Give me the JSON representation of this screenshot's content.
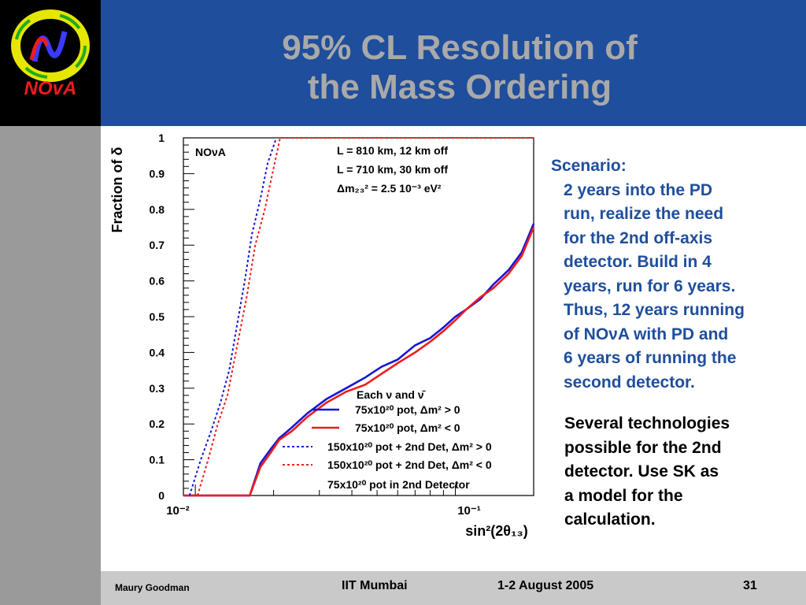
{
  "slide": {
    "title_line1": "95% CL Resolution of",
    "title_line2": "the Mass Ordering",
    "logo_text": "NOvA"
  },
  "side_text": {
    "scenario_label": "Scenario:",
    "lines": [
      "2 years into the PD",
      "run, realize the need",
      "for the 2nd off-axis",
      "detector.  Build in 4",
      "years, run for 6 years.",
      "Thus, 12 years running",
      "of NOνA with PD and",
      "6 years of running the",
      "second detector."
    ],
    "paragraph2": [
      "Several technologies",
      "possible for the 2nd",
      "detector.  Use SK as",
      "a model for the",
      "calculation."
    ]
  },
  "footer": {
    "author": "Maury Goodman",
    "venue": "IIT Mumbai",
    "date": "1-2 August 2005",
    "page": "31"
  },
  "colors": {
    "header_bg": "#1f4e9c",
    "title": "#a9a9a9",
    "blue": "#1515d6",
    "red": "#ee1c1c",
    "side_text": "#1f4e9c"
  },
  "chart_data": {
    "type": "line",
    "xscale": "log",
    "xlim": [
      0.009,
      0.2
    ],
    "ylim": [
      0,
      1
    ],
    "ylabel": "Fraction of δ",
    "xlabel": "sin²(2θ₁₃)",
    "x_tick_labels": [
      "10⁻²",
      "10⁻¹"
    ],
    "y_tick_labels": [
      "0",
      "0.1",
      "0.2",
      "0.3",
      "0.4",
      "0.5",
      "0.6",
      "0.7",
      "0.8",
      "0.9",
      "1"
    ],
    "annotation_label": "NOνA",
    "annotation_lines": [
      "L = 810 km, 12 km off",
      "L = 710 km, 30 km off",
      "Δm₂₃² = 2.5 10⁻³ eV²"
    ],
    "legend_header": "Each ν and ν̄",
    "series": [
      {
        "name": "75x10²⁰ pot, Δm² > 0",
        "style": "solid",
        "color": "#1515d6",
        "points": [
          [
            0.009,
            0
          ],
          [
            0.0162,
            0
          ],
          [
            0.0178,
            0.09
          ],
          [
            0.0195,
            0.13
          ],
          [
            0.021,
            0.16
          ],
          [
            0.0235,
            0.19
          ],
          [
            0.027,
            0.23
          ],
          [
            0.032,
            0.27
          ],
          [
            0.038,
            0.3
          ],
          [
            0.045,
            0.33
          ],
          [
            0.052,
            0.36
          ],
          [
            0.06,
            0.38
          ],
          [
            0.07,
            0.42
          ],
          [
            0.08,
            0.44
          ],
          [
            0.09,
            0.47
          ],
          [
            0.1,
            0.5
          ],
          [
            0.11,
            0.52
          ],
          [
            0.125,
            0.55
          ],
          [
            0.14,
            0.59
          ],
          [
            0.16,
            0.63
          ],
          [
            0.18,
            0.68
          ],
          [
            0.2,
            0.76
          ]
        ]
      },
      {
        "name": "75x10²⁰ pot, Δm² < 0",
        "style": "solid",
        "color": "#ee1c1c",
        "points": [
          [
            0.009,
            0
          ],
          [
            0.0162,
            0
          ],
          [
            0.0178,
            0.08
          ],
          [
            0.0195,
            0.12
          ],
          [
            0.021,
            0.155
          ],
          [
            0.0235,
            0.18
          ],
          [
            0.027,
            0.22
          ],
          [
            0.032,
            0.26
          ],
          [
            0.038,
            0.29
          ],
          [
            0.045,
            0.31
          ],
          [
            0.052,
            0.34
          ],
          [
            0.06,
            0.37
          ],
          [
            0.07,
            0.4
          ],
          [
            0.08,
            0.43
          ],
          [
            0.09,
            0.46
          ],
          [
            0.1,
            0.49
          ],
          [
            0.11,
            0.52
          ],
          [
            0.125,
            0.555
          ],
          [
            0.14,
            0.58
          ],
          [
            0.16,
            0.62
          ],
          [
            0.18,
            0.67
          ],
          [
            0.2,
            0.75
          ]
        ]
      },
      {
        "name": "150x10²⁰ pot + 2nd Det, Δm² > 0",
        "style": "dashed",
        "color": "#1515d6",
        "points": [
          [
            0.0095,
            0
          ],
          [
            0.0105,
            0.1
          ],
          [
            0.0115,
            0.18
          ],
          [
            0.0125,
            0.26
          ],
          [
            0.0135,
            0.35
          ],
          [
            0.0145,
            0.48
          ],
          [
            0.0155,
            0.6
          ],
          [
            0.0165,
            0.73
          ],
          [
            0.0178,
            0.83
          ],
          [
            0.019,
            0.93
          ],
          [
            0.0205,
            1.0
          ]
        ]
      },
      {
        "name": "150x10²⁰ pot + 2nd Det, Δm² < 0",
        "style": "dashed",
        "color": "#ee1c1c",
        "points": [
          [
            0.0102,
            0
          ],
          [
            0.0112,
            0.1
          ],
          [
            0.0122,
            0.2
          ],
          [
            0.0133,
            0.28
          ],
          [
            0.0145,
            0.42
          ],
          [
            0.0158,
            0.56
          ],
          [
            0.017,
            0.7
          ],
          [
            0.0185,
            0.8
          ],
          [
            0.0198,
            0.9
          ],
          [
            0.0212,
            1.0
          ],
          [
            0.2,
            1.0
          ]
        ]
      }
    ],
    "legend_footer": "75x10²⁰ pot in 2nd Detector"
  }
}
